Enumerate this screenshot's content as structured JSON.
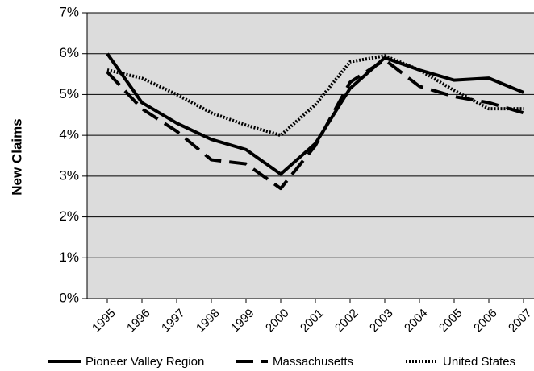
{
  "chart_data": {
    "type": "line",
    "y_label": "New Claims",
    "categories": [
      "1995",
      "1996",
      "1997",
      "1998",
      "1999",
      "2000",
      "2001",
      "2002",
      "2003",
      "2004",
      "2005",
      "2006",
      "2007"
    ],
    "series": [
      {
        "name": "Pioneer Valley Region",
        "color": "#000000",
        "style": "solid",
        "values": [
          6.0,
          4.8,
          4.3,
          3.9,
          3.65,
          3.05,
          3.8,
          5.15,
          5.9,
          5.6,
          5.35,
          5.4,
          5.05
        ]
      },
      {
        "name": "Massachusetts",
        "color": "#000000",
        "style": "dashed",
        "values": [
          5.55,
          4.65,
          4.1,
          3.4,
          3.3,
          2.7,
          3.75,
          5.3,
          5.85,
          5.2,
          4.95,
          4.8,
          4.55
        ]
      },
      {
        "name": "United States",
        "color": "#000000",
        "style": "dotted",
        "values": [
          5.6,
          5.4,
          5.0,
          4.55,
          4.25,
          4.0,
          4.75,
          5.8,
          5.95,
          5.6,
          5.1,
          4.65,
          4.65
        ]
      }
    ],
    "ylim": [
      0,
      7
    ],
    "yticks": [
      {
        "value": 0,
        "label": "0%"
      },
      {
        "value": 1,
        "label": "1%"
      },
      {
        "value": 2,
        "label": "2%"
      },
      {
        "value": 3,
        "label": "3%"
      },
      {
        "value": 4,
        "label": "4%"
      },
      {
        "value": 5,
        "label": "5%"
      },
      {
        "value": 6,
        "label": "6%"
      },
      {
        "value": 7,
        "label": "7%"
      }
    ],
    "grid": true,
    "plot_background": "#dcdcdc",
    "legend": "bottom"
  }
}
